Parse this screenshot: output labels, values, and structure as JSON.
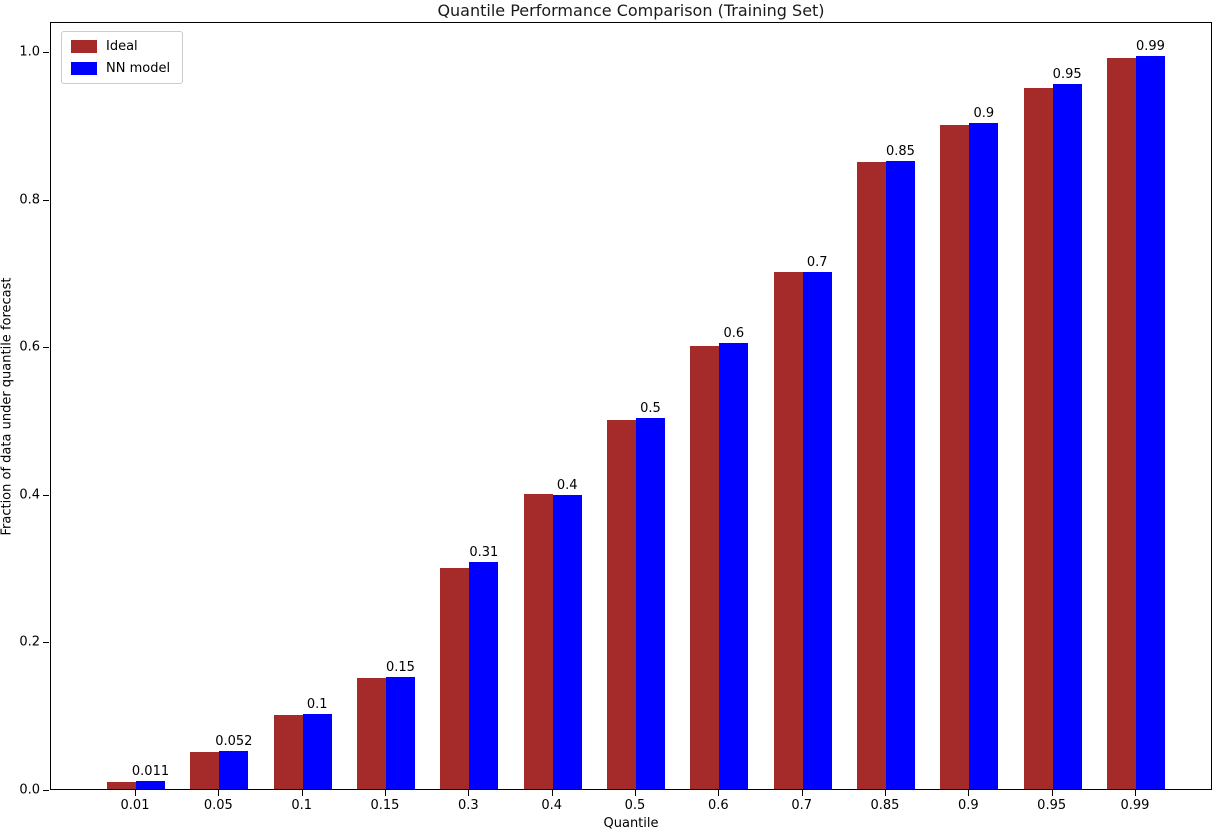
{
  "chart_data": {
    "type": "bar",
    "title": "Quantile Performance Comparison (Training Set)",
    "xlabel": "Quantile",
    "ylabel": "Fraction of data under quantile forecast",
    "ylim": [
      0,
      1.05
    ],
    "ytick_labels": [
      "0.0",
      "0.2",
      "0.4",
      "0.6",
      "0.8",
      "1.0"
    ],
    "ytick_values": [
      0.0,
      0.2,
      0.4,
      0.6,
      0.8,
      1.0
    ],
    "categories": [
      "0.01",
      "0.05",
      "0.1",
      "0.15",
      "0.3",
      "0.4",
      "0.5",
      "0.6",
      "0.7",
      "0.85",
      "0.9",
      "0.95",
      "0.99"
    ],
    "series": [
      {
        "name": "Ideal",
        "color": "#a52a2a",
        "values": [
          0.01,
          0.05,
          0.1,
          0.15,
          0.3,
          0.4,
          0.5,
          0.6,
          0.7,
          0.85,
          0.9,
          0.95,
          0.99
        ]
      },
      {
        "name": "NN model",
        "color": "#0000ff",
        "values": [
          0.011,
          0.052,
          0.102,
          0.152,
          0.307,
          0.398,
          0.503,
          0.604,
          0.7,
          0.851,
          0.903,
          0.955,
          0.993
        ]
      }
    ],
    "bar_labels": [
      "0.011",
      "0.052",
      "0.1",
      "0.15",
      "0.31",
      "0.4",
      "0.5",
      "0.6",
      "0.7",
      "0.85",
      "0.9",
      "0.95",
      "0.99"
    ],
    "legend_position": "upper left",
    "grid": false
  }
}
